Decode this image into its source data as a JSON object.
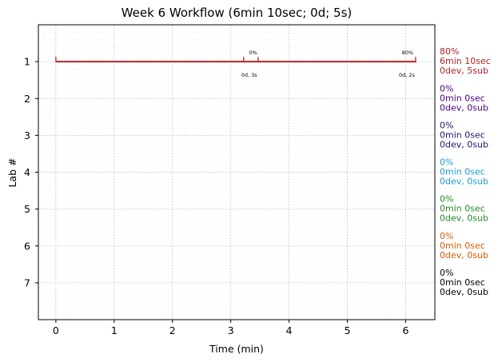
{
  "chart_data": {
    "type": "line",
    "title": "Week 6 Workflow (6min 10sec; 0d; 5s)",
    "xlabel": "Time (min)",
    "ylabel": "Lab #",
    "xlim": [
      -0.3,
      6.5
    ],
    "ylim": [
      8.0,
      0.0
    ],
    "x_ticks": [
      0,
      1,
      2,
      3,
      4,
      5,
      6
    ],
    "y_ticks": [
      1,
      2,
      3,
      4,
      5,
      6,
      7
    ],
    "grid": true,
    "labs": [
      {
        "lab": 1,
        "color": "#b22222",
        "line": {
          "start": 0.0,
          "end": 6.17
        },
        "markers": [
          {
            "x": 3.22,
            "label_above": "0%",
            "label_below": "0d, 3s"
          },
          {
            "x": 3.47
          }
        ],
        "end_label_above": "80%",
        "end_label_below": "0d, 2s",
        "summary": [
          "80%",
          "6min 10sec",
          "0dev, 5sub"
        ]
      },
      {
        "lab": 2,
        "color": "#4b0082",
        "summary": [
          "0%",
          "0min 0sec",
          "0dev, 0sub"
        ]
      },
      {
        "lab": 3,
        "color": "#191970",
        "summary": [
          "0%",
          "0min 0sec",
          "0dev, 0sub"
        ]
      },
      {
        "lab": 4,
        "color": "#1e9ad6",
        "summary": [
          "0%",
          "0min 0sec",
          "0dev, 0sub"
        ]
      },
      {
        "lab": 5,
        "color": "#228b22",
        "summary": [
          "0%",
          "0min 0sec",
          "0dev, 0sub"
        ]
      },
      {
        "lab": 6,
        "color": "#e35a00",
        "summary": [
          "0%",
          "0min 0sec",
          "0dev, 0sub"
        ]
      },
      {
        "lab": 7,
        "color": "#000000",
        "summary": [
          "0%",
          "0min 0sec",
          "0dev, 0sub"
        ]
      }
    ]
  }
}
